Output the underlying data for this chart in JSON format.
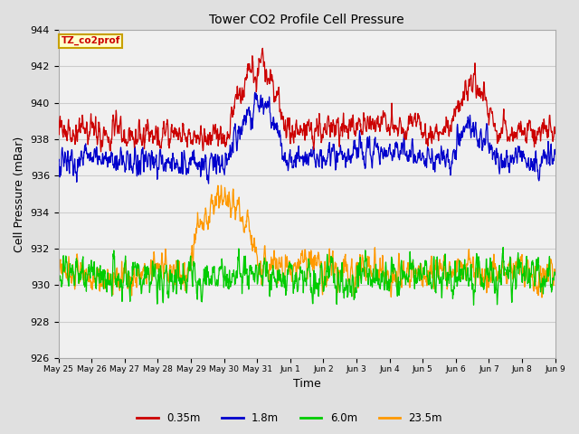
{
  "title": "Tower CO2 Profile Cell Pressure",
  "xlabel": "Time",
  "ylabel": "Cell Pressure (mBar)",
  "ylim": [
    926,
    944
  ],
  "yticks": [
    926,
    928,
    930,
    932,
    934,
    936,
    938,
    940,
    942,
    944
  ],
  "legend_label": "TZ_co2prof",
  "legend_box_color": "#c8a000",
  "legend_box_bg": "#ffffcc",
  "series_colors": [
    "#cc0000",
    "#0000cc",
    "#00cc00",
    "#ff9900"
  ],
  "series_labels": [
    "0.35m",
    "1.8m",
    "6.0m",
    "23.5m"
  ],
  "x_tick_labels": [
    "May 25",
    "May 26",
    "May 27",
    "May 28",
    "May 29",
    "May 30",
    "May 31",
    "Jun 1",
    "Jun 2",
    "Jun 3",
    "Jun 4",
    "Jun 5",
    "Jun 6",
    "Jun 7",
    "Jun 8",
    "Jun 9"
  ],
  "bg_color": "#e0e0e0",
  "plot_bg_color": "#f0f0f0",
  "grid_color": "#cccccc",
  "n_points": 1500,
  "seed": 7
}
